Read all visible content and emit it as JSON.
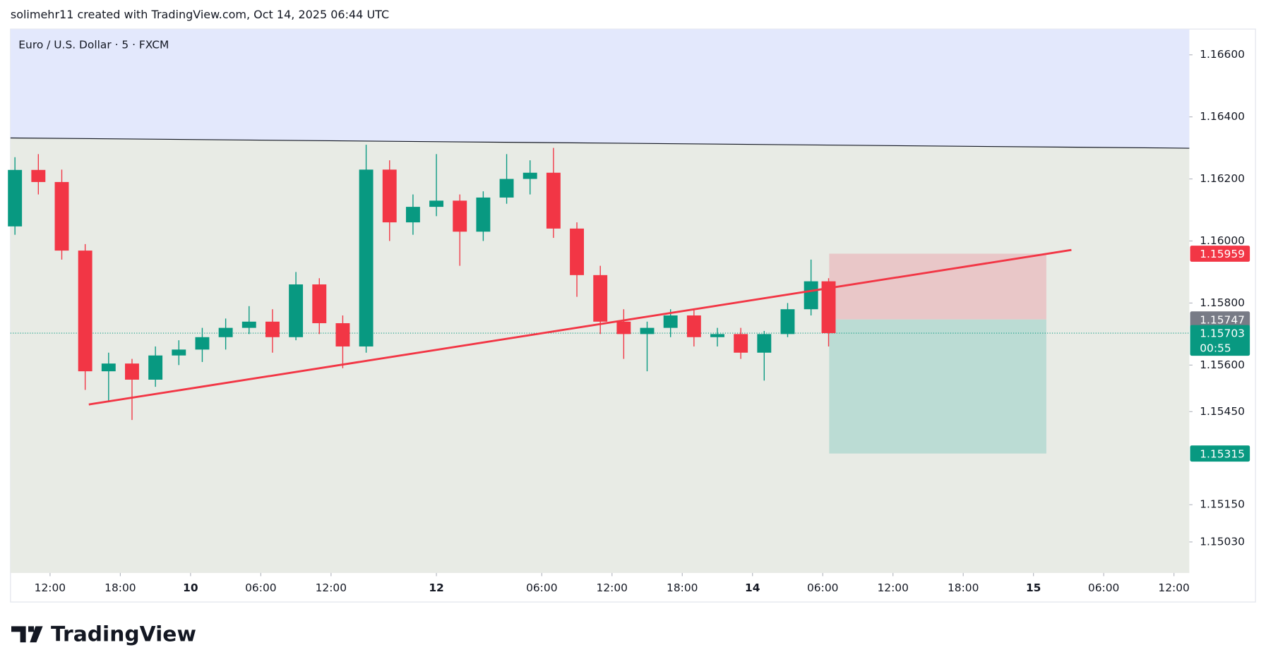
{
  "header": {
    "text": "solimehr11 created with TradingView.com, Oct 14, 2025 06:44 UTC"
  },
  "footer": {
    "brand": "TradingView"
  },
  "chart_data": {
    "type": "candlestick",
    "title": "Euro / U.S. Dollar · 5 · FXCM",
    "x": [
      9,
      11,
      13,
      15,
      17,
      19,
      21,
      23,
      25,
      27,
      29,
      31,
      33,
      35,
      37,
      39,
      41,
      43,
      45,
      47,
      49,
      51,
      53,
      55,
      57,
      59,
      61,
      63,
      65,
      67,
      69,
      71,
      73,
      75,
      77,
      78.5
    ],
    "open": [
      1.16047,
      1.16229,
      1.1619,
      1.15969,
      1.1558,
      1.15605,
      1.15553,
      1.15631,
      1.1565,
      1.1569,
      1.1572,
      1.1574,
      1.1569,
      1.1586,
      1.15735,
      1.1566,
      1.1623,
      1.1606,
      1.1611,
      1.1613,
      1.1603,
      1.1614,
      1.162,
      1.1622,
      1.1604,
      1.1589,
      1.1574,
      1.157,
      1.1572,
      1.1576,
      1.1569,
      1.157,
      1.1564,
      1.157,
      1.1578,
      1.1587
    ],
    "high": [
      1.1627,
      1.1628,
      1.1623,
      1.1599,
      1.1564,
      1.1562,
      1.1566,
      1.1568,
      1.1572,
      1.1575,
      1.1579,
      1.1578,
      1.159,
      1.1588,
      1.1576,
      1.1631,
      1.1626,
      1.1615,
      1.1628,
      1.1615,
      1.1616,
      1.1628,
      1.1626,
      1.163,
      1.1606,
      1.1592,
      1.1578,
      1.1574,
      1.1578,
      1.1578,
      1.1572,
      1.1572,
      1.1571,
      1.158,
      1.1594,
      1.1588
    ],
    "low": [
      1.1602,
      1.1615,
      1.1594,
      1.1552,
      1.1548,
      1.15423,
      1.1553,
      1.156,
      1.1561,
      1.1565,
      1.157,
      1.1564,
      1.1568,
      1.157,
      1.1559,
      1.1564,
      1.16,
      1.1602,
      1.1608,
      1.1592,
      1.16,
      1.1612,
      1.1615,
      1.1601,
      1.1582,
      1.157,
      1.1562,
      1.1558,
      1.1569,
      1.1566,
      1.1566,
      1.1562,
      1.1555,
      1.1569,
      1.1576,
      1.1566
    ],
    "close": [
      1.16229,
      1.1619,
      1.15969,
      1.1558,
      1.15605,
      1.15553,
      1.15631,
      1.1565,
      1.1569,
      1.1572,
      1.1574,
      1.1569,
      1.1586,
      1.15735,
      1.1566,
      1.1623,
      1.1606,
      1.1611,
      1.1613,
      1.1603,
      1.1614,
      1.162,
      1.1622,
      1.1604,
      1.1589,
      1.1574,
      1.157,
      1.1572,
      1.1576,
      1.1569,
      1.157,
      1.1564,
      1.157,
      1.1578,
      1.1587,
      1.15703
    ],
    "up_color": "#089981",
    "down_color": "#f23645",
    "xlim": [
      8.62,
      109.31
    ],
    "ylim": [
      1.1493,
      1.16683
    ],
    "xticks": [
      {
        "value": 12,
        "label": "12:00"
      },
      {
        "value": 18,
        "label": "18:00"
      },
      {
        "value": 24,
        "label": "10"
      },
      {
        "value": 30,
        "label": "06:00"
      },
      {
        "value": 36,
        "label": "12:00"
      },
      {
        "value": 45,
        "label": "12"
      },
      {
        "value": 54,
        "label": "06:00"
      },
      {
        "value": 60,
        "label": "12:00"
      },
      {
        "value": 66,
        "label": "18:00"
      },
      {
        "value": 72,
        "label": "14"
      },
      {
        "value": 78,
        "label": "06:00"
      },
      {
        "value": 84,
        "label": "12:00"
      },
      {
        "value": 90,
        "label": "18:00"
      },
      {
        "value": 96,
        "label": "15"
      },
      {
        "value": 102,
        "label": "06:00"
      },
      {
        "value": 108,
        "label": "12:00"
      }
    ],
    "yticks": [
      {
        "value": 1.166,
        "label": "1.16600"
      },
      {
        "value": 1.164,
        "label": "1.16400"
      },
      {
        "value": 1.162,
        "label": "1.16200"
      },
      {
        "value": 1.16,
        "label": "1.16000"
      },
      {
        "value": 1.158,
        "label": "1.15800"
      },
      {
        "value": 1.156,
        "label": "1.15600"
      },
      {
        "value": 1.1545,
        "label": "1.15450"
      },
      {
        "value": 1.1515,
        "label": "1.15150"
      },
      {
        "value": 1.1503,
        "label": "1.15030"
      }
    ],
    "price_labels": [
      {
        "value": 1.15959,
        "label": "1.15959",
        "color": "#f23645"
      },
      {
        "value": 1.15747,
        "label": "1.15747",
        "color": "#787b86"
      },
      {
        "value": 1.15703,
        "label": "1.15703",
        "color": "#089981",
        "countdown": "00:55"
      },
      {
        "value": 1.15315,
        "label": "1.15315",
        "color": "#089981"
      }
    ],
    "resistance": {
      "x": [
        8.62,
        109.31
      ],
      "y": [
        1.16332,
        1.16299
      ],
      "color": "#131722",
      "zone_color": "#e3e8fc"
    },
    "trendline": {
      "x": [
        15.31,
        99.24
      ],
      "y": [
        1.15473,
        1.15971
      ],
      "color": "#f23645"
    },
    "position": {
      "x": [
        78.55,
        97.1
      ],
      "entry": 1.15747,
      "stop": 1.15959,
      "target": 1.15315,
      "stop_color": "#e9c7c8",
      "target_color": "#bbdcd4"
    }
  }
}
